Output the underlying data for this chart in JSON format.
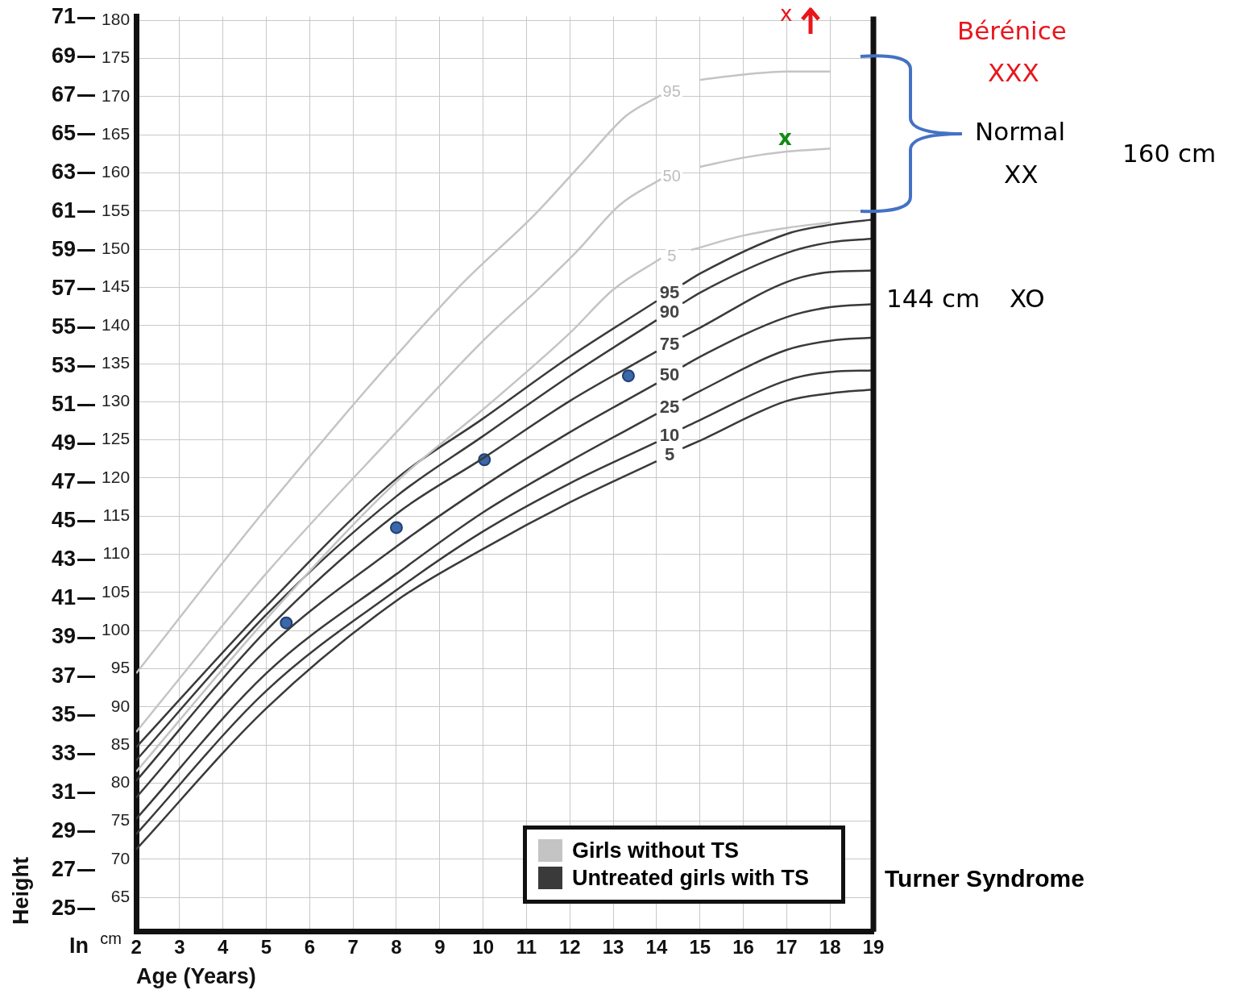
{
  "chart_data": {
    "type": "line",
    "xlabel": "Age (Years)",
    "ylabel": "cm",
    "y2label": "Height",
    "xlim": [
      2,
      19
    ],
    "xticks": [
      2,
      3,
      4,
      5,
      6,
      7,
      8,
      9,
      10,
      11,
      12,
      13,
      14,
      15,
      16,
      17,
      18,
      19
    ],
    "ylim": [
      60.5,
      180.5
    ],
    "yticks": [
      65,
      70,
      75,
      80,
      85,
      90,
      95,
      100,
      105,
      110,
      115,
      120,
      125,
      130,
      135,
      140,
      145,
      150,
      155,
      160,
      165,
      170,
      175,
      180
    ],
    "y2lim": [
      23.82,
      71.06
    ],
    "y2ticks": [
      25,
      27,
      29,
      31,
      33,
      35,
      37,
      39,
      41,
      43,
      45,
      47,
      49,
      51,
      53,
      55,
      57,
      59,
      61,
      63,
      65,
      67,
      69,
      71
    ],
    "grid": true,
    "legend": "bottom right",
    "marker": "none",
    "series": [
      {
        "name": "Girls without TS",
        "color": "#c4c4c4",
        "x": [
          2,
          5,
          9.4,
          11.2,
          12.3,
          13.3,
          14.1,
          14.35,
          15,
          16,
          17,
          18
        ],
        "values": [
          94.4,
          116,
          144.8,
          154.6,
          161.4,
          167.5,
          170.2,
          null,
          172.2,
          172.9,
          173.3,
          173.3
        ]
      },
      {
        "color": "#c4c4c4",
        "x": [
          2,
          5,
          8,
          10,
          11.28,
          12.16,
          13.15,
          14.1,
          14.35,
          15,
          16,
          17,
          18
        ],
        "values": [
          86.7,
          107.5,
          126,
          138,
          144.8,
          149.7,
          155.8,
          159.2,
          null,
          160.8,
          162,
          162.8,
          163.2
        ]
      },
      {
        "color": "#c4c4c4",
        "x": [
          2,
          5,
          8,
          10,
          12,
          13,
          14.1,
          14.35,
          14.8,
          16,
          17,
          18
        ],
        "values": [
          81.5,
          101.5,
          119.5,
          129,
          139,
          144.7,
          148.8,
          null,
          149.9,
          151.8,
          152.8,
          153.5
        ]
      },
      {
        "name": "Untreated girls with TS",
        "color": "#3a3a3a",
        "x": [
          2,
          5,
          8,
          10,
          12,
          14,
          14.3,
          14.6,
          15,
          17,
          18,
          19
        ],
        "values": [
          84.7,
          103.2,
          119.9,
          127.8,
          135.9,
          143.2,
          null,
          145.4,
          146.8,
          152,
          153.2,
          153.9
        ]
      },
      {
        "color": "#3a3a3a",
        "x": [
          2,
          5,
          8,
          10,
          12,
          14,
          14.3,
          14.6,
          15,
          17,
          18,
          19
        ],
        "values": [
          83,
          102.1,
          117.6,
          125.5,
          133.4,
          140.7,
          null,
          142.9,
          144.3,
          149.5,
          150.9,
          151.4
        ]
      },
      {
        "color": "#3a3a3a",
        "x": [
          2,
          5,
          8,
          10,
          12,
          14,
          14.3,
          14.6,
          15,
          17,
          18,
          19
        ],
        "values": [
          80.3,
          100,
          115.3,
          122.6,
          130.1,
          136.6,
          null,
          138.5,
          139.7,
          145.7,
          147,
          147.2
        ]
      },
      {
        "color": "#3a3a3a",
        "x": [
          2,
          5,
          8,
          10,
          12,
          14,
          14.3,
          14.6,
          15,
          17,
          18,
          19
        ],
        "values": [
          78.1,
          97.5,
          111,
          118.9,
          126,
          132.4,
          null,
          134.6,
          135.9,
          141.1,
          142.4,
          142.8
        ]
      },
      {
        "color": "#3a3a3a",
        "x": [
          2,
          5,
          8,
          10,
          12,
          14,
          14.3,
          14.6,
          15,
          17,
          18,
          19
        ],
        "values": [
          75.3,
          94.4,
          107.4,
          115.5,
          122.2,
          128.4,
          null,
          130.2,
          131.4,
          136.8,
          138,
          138.4
        ]
      },
      {
        "color": "#3a3a3a",
        "x": [
          2,
          5,
          8,
          10,
          12,
          14,
          14.3,
          14.6,
          15,
          17,
          18,
          19
        ],
        "values": [
          73.3,
          92.1,
          105.3,
          113,
          119.3,
          124.7,
          null,
          126.5,
          127.6,
          132.8,
          133.9,
          134.1
        ]
      },
      {
        "color": "#3a3a3a",
        "x": [
          2,
          5,
          8,
          10,
          12,
          14,
          14.3,
          14.6,
          15,
          17,
          18,
          19
        ],
        "values": [
          71.3,
          89.8,
          103.9,
          110.7,
          116.8,
          122.2,
          null,
          123.9,
          124.9,
          130.1,
          131.1,
          131.6
        ]
      },
      {
        "type": "scatter",
        "marker": "circle",
        "color": "#3a68a8",
        "x": [
          5.46,
          8,
          10.03,
          13.35
        ],
        "values": [
          101,
          113.5,
          122.4,
          133.4
        ]
      }
    ],
    "annotations": [
      "Bérénice",
      "XXX",
      "Normal",
      "XX",
      "160 cm",
      "144 cm",
      "XO",
      "Turner Syndrome",
      "In",
      "x",
      "x",
      "95",
      "50",
      "5",
      "95",
      "90",
      "75",
      "50",
      "25",
      "10",
      "5"
    ]
  }
}
